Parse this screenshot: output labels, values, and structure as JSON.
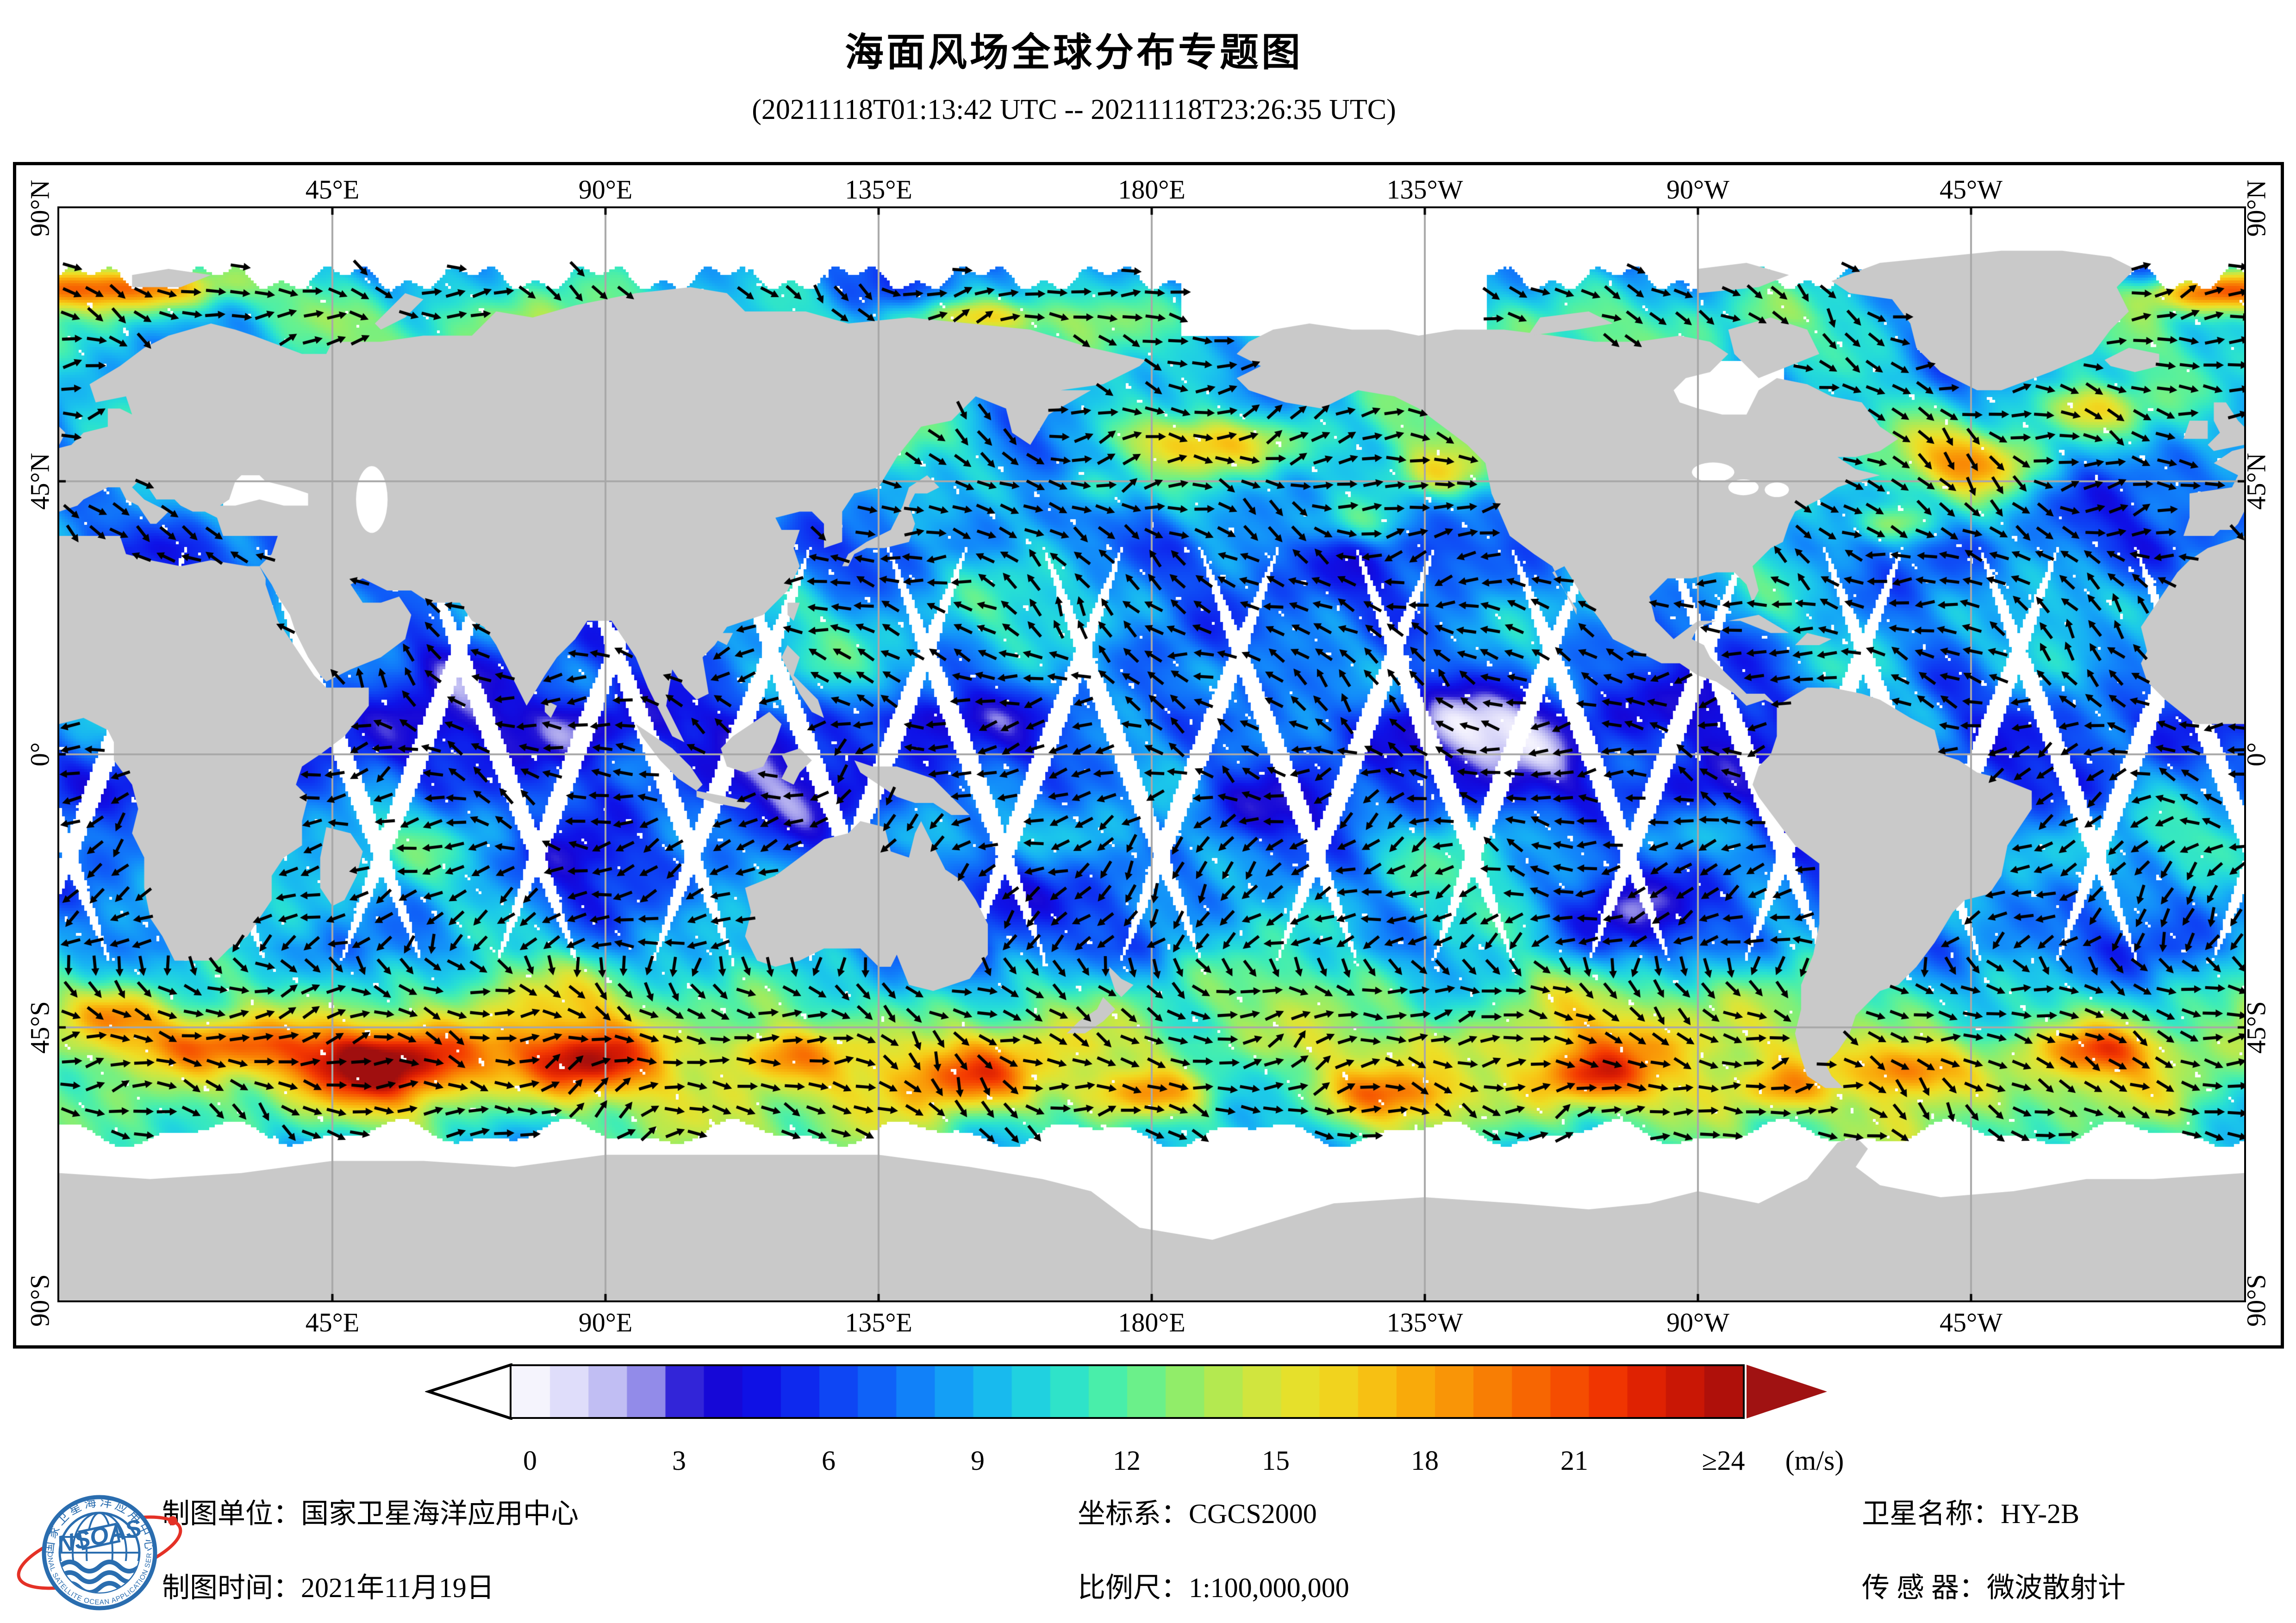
{
  "title": "海面风场全球分布专题图",
  "subtitle": "(20211118T01:13:42 UTC -- 20211118T23:26:35 UTC)",
  "map": {
    "top_axis": [
      "45°E",
      "90°E",
      "135°E",
      "180°E",
      "135°W",
      "90°W",
      "45°W"
    ],
    "bottom_axis": [
      "45°E",
      "90°E",
      "135°E",
      "180°E",
      "135°W",
      "90°W",
      "45°W"
    ],
    "left_axis": [
      "90°N",
      "45°N",
      "0°",
      "45°S",
      "90°S"
    ],
    "right_axis": [
      "90°N",
      "45°N",
      "0°",
      "45°S",
      "90°S"
    ],
    "land_color": "#c9c9c9",
    "grid_color": "#a8a8a8",
    "nodata_color": "#ffffff",
    "arrow_color": "#000000"
  },
  "colorbar": {
    "tick_labels": [
      "0",
      "3",
      "6",
      "9",
      "12",
      "15",
      "18",
      "21",
      "≥24"
    ],
    "unit_label": "(m/s)",
    "left_arrow_fill": "#ffffff",
    "right_arrow_fill": "#a01212",
    "stops": [
      {
        "v": 0,
        "c": "#ffffff"
      },
      {
        "v": 0.8,
        "c": "#eae8fc"
      },
      {
        "v": 1.5,
        "c": "#d4d2f8"
      },
      {
        "v": 2.1,
        "c": "#b6b2f0"
      },
      {
        "v": 2.7,
        "c": "#8d86e8"
      },
      {
        "v": 3.1,
        "c": "#5146dd"
      },
      {
        "v": 3.5,
        "c": "#2416d6"
      },
      {
        "v": 4.2,
        "c": "#1507d8"
      },
      {
        "v": 5.0,
        "c": "#0e13e8"
      },
      {
        "v": 6.0,
        "c": "#0e38f2"
      },
      {
        "v": 7.0,
        "c": "#0f5ef8"
      },
      {
        "v": 8.0,
        "c": "#1287fa"
      },
      {
        "v": 9.0,
        "c": "#16aef4"
      },
      {
        "v": 9.8,
        "c": "#1cc9e9"
      },
      {
        "v": 10.6,
        "c": "#27dfd4"
      },
      {
        "v": 11.4,
        "c": "#40edb4"
      },
      {
        "v": 12.2,
        "c": "#63f192"
      },
      {
        "v": 13.0,
        "c": "#8cee6e"
      },
      {
        "v": 13.8,
        "c": "#b2ea52"
      },
      {
        "v": 14.8,
        "c": "#d8e53a"
      },
      {
        "v": 15.6,
        "c": "#ecdf26"
      },
      {
        "v": 16.6,
        "c": "#f7c917"
      },
      {
        "v": 17.6,
        "c": "#f9ab0b"
      },
      {
        "v": 18.8,
        "c": "#f98905"
      },
      {
        "v": 20.0,
        "c": "#f76202"
      },
      {
        "v": 21.2,
        "c": "#f43a01"
      },
      {
        "v": 22.4,
        "c": "#d91c03"
      },
      {
        "v": 23.4,
        "c": "#b81208"
      },
      {
        "v": 24.0,
        "c": "#a00f0f"
      }
    ]
  },
  "footer": {
    "agency": "制图单位：国家卫星海洋应用中心",
    "coord_system": "坐标系：CGCS2000",
    "satellite": "卫星名称：HY-2B",
    "date": "制图时间：2021年11月19日",
    "scale": "比例尺：1:100,000,000",
    "sensor": "传 感 器：微波散射计"
  },
  "logo": {
    "acronym": "NSOAS",
    "ring_top": "国家卫星海洋应用中心",
    "ring_bottom": "NATIONAL SATELLITE OCEAN APPLICATION SERVICE",
    "blue": "#2a6daf",
    "red": "#e43126"
  }
}
